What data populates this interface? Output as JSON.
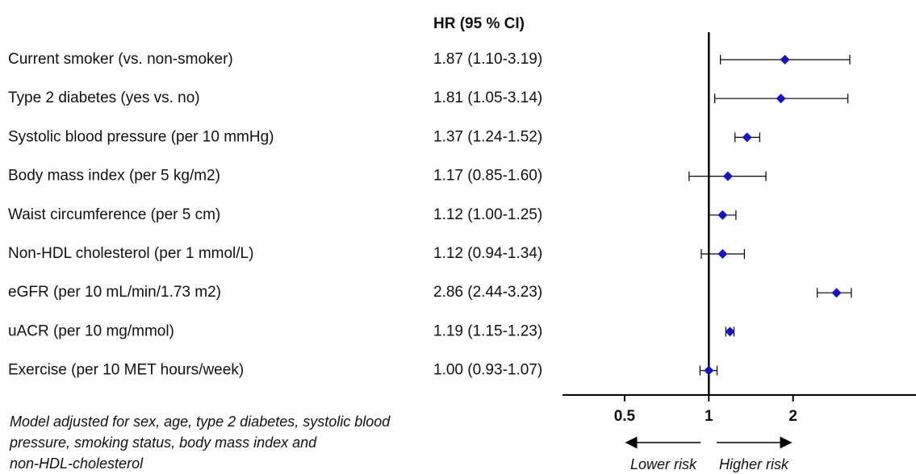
{
  "chart_data": {
    "type": "forest",
    "column_header": "HR (95 % CI)",
    "categories": [
      "Current smoker (vs. non-smoker)",
      "Type 2 diabetes (yes vs. no)",
      "Systolic blood pressure (per 10 mmHg)",
      "Body mass index (per 5 kg/m2)",
      "Waist circumference (per 5 cm)",
      "Non-HDL cholesterol (per 1 mmol/L)",
      "eGFR (per 10 mL/min/1.73 m2)",
      "uACR (per 10 mg/mmol)",
      "Exercise (per 10 MET hours/week)"
    ],
    "values": [
      1.87,
      1.81,
      1.37,
      1.17,
      1.12,
      1.12,
      2.86,
      1.19,
      1.0
    ],
    "lower": [
      1.1,
      1.05,
      1.24,
      0.85,
      1.0,
      0.94,
      2.44,
      1.15,
      0.93
    ],
    "upper": [
      3.19,
      3.14,
      1.52,
      1.6,
      1.25,
      1.34,
      3.23,
      1.23,
      1.07
    ],
    "value_labels": [
      "1.87 (1.10-3.19)",
      "1.81 (1.05-3.14)",
      "1.37 (1.24-1.52)",
      "1.17 (0.85-1.60)",
      "1.12 (1.00-1.25)",
      "1.12 (0.94-1.34)",
      "2.86 (2.44-3.23)",
      "1.19 (1.15-1.23)",
      "1.00 (0.93-1.07)"
    ],
    "color": "#1414c8",
    "log_scale": true,
    "xlim": [
      0.3,
      5.5
    ],
    "xticks": [
      0.5,
      1,
      2
    ],
    "reference_line": 1,
    "direction_labels": [
      "Lower risk",
      "Higher risk"
    ],
    "footnote": [
      "Model adjusted for sex, age, type 2 diabetes, systolic blood",
      "pressure, smoking status, body mass index and",
      "non-HDL-cholesterol"
    ]
  }
}
